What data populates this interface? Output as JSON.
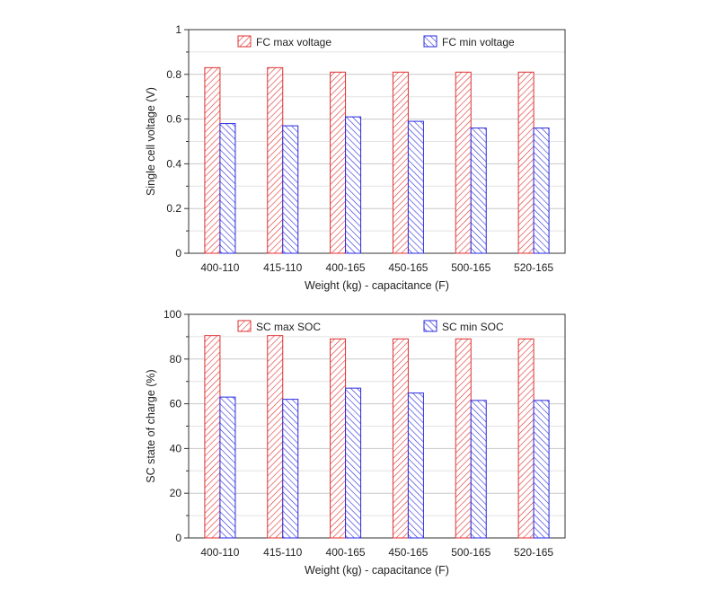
{
  "chart_data": [
    {
      "type": "bar",
      "title": "",
      "categories": [
        "400-110",
        "415-110",
        "400-165",
        "450-165",
        "500-165",
        "520-165"
      ],
      "series": [
        {
          "name": "FC max voltage",
          "color": "#e03030",
          "values": [
            0.83,
            0.83,
            0.81,
            0.81,
            0.81,
            0.81
          ]
        },
        {
          "name": "FC min voltage",
          "color": "#2a2ae0",
          "values": [
            0.58,
            0.57,
            0.61,
            0.59,
            0.56,
            0.56
          ]
        }
      ],
      "xlabel": "Weight (kg) - capacitance (F)",
      "ylabel": "Single cell voltage (V)",
      "ylim": [
        0,
        1
      ],
      "yticks": [
        0,
        0.2,
        0.4,
        0.6,
        0.8,
        1
      ],
      "ytick_labels": [
        "0",
        "0.2",
        "0.4",
        "0.6",
        "0.8",
        "1"
      ],
      "grid": true,
      "legend": "top"
    },
    {
      "type": "bar",
      "title": "",
      "categories": [
        "400-110",
        "415-110",
        "400-165",
        "450-165",
        "500-165",
        "520-165"
      ],
      "series": [
        {
          "name": "SC max SOC",
          "color": "#e03030",
          "values": [
            90.5,
            90.5,
            89,
            89,
            89,
            89
          ]
        },
        {
          "name": "SC min SOC",
          "color": "#2a2ae0",
          "values": [
            63,
            62,
            67,
            64.8,
            61.5,
            61.5
          ]
        }
      ],
      "xlabel": "Weight (kg) - capacitance (F)",
      "ylabel": "SC state of charge (%)",
      "ylim": [
        0,
        100
      ],
      "yticks": [
        0,
        20,
        40,
        60,
        80,
        100
      ],
      "ytick_labels": [
        "0",
        "20",
        "40",
        "60",
        "80",
        "100"
      ],
      "grid": true,
      "legend": "top"
    }
  ]
}
